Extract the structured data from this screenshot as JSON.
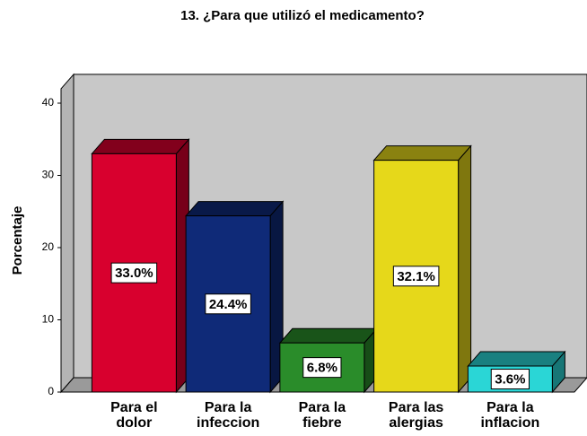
{
  "chart_data": {
    "type": "bar3d",
    "title": "13. ¿Para que utilizó el medicamento?",
    "y_label": "Porcentaje",
    "categories": [
      "Para el dolor",
      "Para la infeccion",
      "Para la fiebre",
      "Para las alergias",
      "Para la inflacion"
    ],
    "values": [
      33.0,
      24.4,
      6.8,
      32.1,
      3.6
    ],
    "value_labels": [
      "33.0%",
      "24.4%",
      "6.8%",
      "32.1%",
      "3.6%"
    ],
    "colors": [
      "#d8002e",
      "#0f2a78",
      "#2a8c2a",
      "#e6d81a",
      "#2ad6d6"
    ],
    "ylim": [
      0,
      42
    ],
    "yticks": [
      0,
      10,
      20,
      30,
      40
    ],
    "grid": false
  }
}
